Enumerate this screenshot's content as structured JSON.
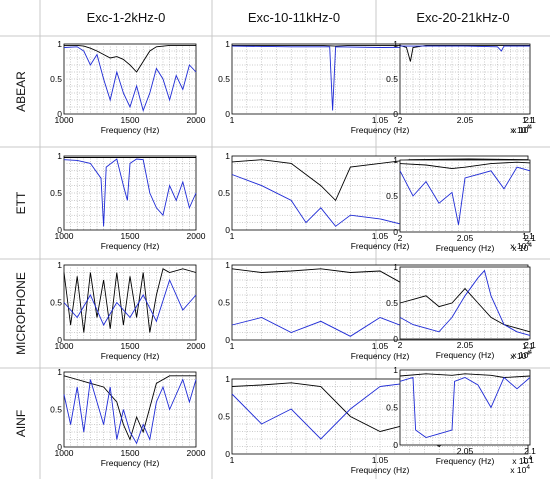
{
  "columns": [
    "Exc-1-2kHz-0",
    "Exc-10-11kHz-0",
    "Exc-20-21kHz-0"
  ],
  "rows": [
    "ABEAR",
    "ETT",
    "MICROPHONE",
    "AINF"
  ],
  "colors": {
    "series_a": "#000000",
    "series_b": "#1f2bd6",
    "grid": "#9a9a9a",
    "border": "#b8b8b8"
  },
  "chart_data": [
    {
      "type": "line",
      "row": "ABEAR",
      "column": "Exc-1-2kHz-0",
      "xlabel": "Frequency (Hz)",
      "x_multiplier": "",
      "xlim": [
        1000,
        2000
      ],
      "xticks": [
        "1000",
        "1500",
        "2000"
      ],
      "ylim": [
        0,
        1
      ],
      "yticks": [
        "0",
        "0.5",
        "1"
      ],
      "series": [
        {
          "color": "#000000",
          "x": [
            1000,
            1100,
            1150,
            1200,
            1250,
            1300,
            1350,
            1400,
            1450,
            1500,
            1550,
            1600,
            1650,
            1700,
            1800,
            1900,
            2000
          ],
          "y": [
            0.98,
            0.98,
            0.97,
            0.94,
            0.9,
            0.85,
            0.8,
            0.82,
            0.78,
            0.7,
            0.6,
            0.75,
            0.9,
            0.96,
            0.98,
            0.98,
            0.98
          ]
        },
        {
          "color": "#1f2bd6",
          "x": [
            1000,
            1100,
            1150,
            1200,
            1250,
            1300,
            1350,
            1400,
            1450,
            1500,
            1550,
            1600,
            1650,
            1700,
            1750,
            1800,
            1850,
            1900,
            1950,
            2000
          ],
          "y": [
            0.95,
            0.96,
            0.9,
            0.7,
            0.85,
            0.5,
            0.2,
            0.6,
            0.3,
            0.1,
            0.4,
            0.05,
            0.3,
            0.65,
            0.5,
            0.2,
            0.55,
            0.35,
            0.7,
            0.6
          ]
        }
      ]
    },
    {
      "type": "line",
      "row": "ABEAR",
      "column": "Exc-10-11kHz-0",
      "xlabel": "Frequency (Hz)",
      "x_multiplier": "x 10^4",
      "xlim": [
        1,
        1.1
      ],
      "xticks": [
        "1",
        "1.05",
        "1.1"
      ],
      "ylim": [
        0,
        1
      ],
      "yticks": [
        "0",
        "0.5",
        "1"
      ],
      "series": [
        {
          "color": "#000000",
          "x": [
            1,
            1.03,
            1.035,
            1.04,
            1.1
          ],
          "y": [
            0.98,
            0.98,
            0.97,
            0.98,
            0.98
          ]
        },
        {
          "color": "#1f2bd6",
          "x": [
            1,
            1.02,
            1.033,
            1.034,
            1.035,
            1.05,
            1.08,
            1.1
          ],
          "y": [
            0.97,
            0.96,
            0.96,
            0.05,
            0.96,
            0.95,
            0.96,
            0.95
          ]
        }
      ]
    },
    {
      "type": "line",
      "row": "ABEAR",
      "column": "Exc-20-21kHz-0",
      "xlabel": "",
      "x_multiplier": "x 10^4",
      "xlim": [
        2,
        2.1
      ],
      "xticks": [
        "2",
        "2.05",
        "2.1"
      ],
      "ylim": [
        0,
        1
      ],
      "yticks": [
        "0",
        "0.5",
        "1"
      ],
      "series": [
        {
          "color": "#000000",
          "x": [
            2,
            2.005,
            2.008,
            2.01,
            2.02,
            2.1
          ],
          "y": [
            0.98,
            0.95,
            0.75,
            0.95,
            0.98,
            0.98
          ]
        },
        {
          "color": "#1f2bd6",
          "x": [
            2,
            2.02,
            2.05,
            2.075,
            2.078,
            2.08,
            2.1
          ],
          "y": [
            0.97,
            0.97,
            0.97,
            0.96,
            0.9,
            0.97,
            0.97
          ]
        }
      ]
    },
    {
      "type": "line",
      "row": "ETT",
      "column": "Exc-1-2kHz-0",
      "xlabel": "Frequency (Hz)",
      "x_multiplier": "",
      "xlim": [
        1000,
        2000
      ],
      "xticks": [
        "1000",
        "1500",
        "2000"
      ],
      "ylim": [
        0,
        1
      ],
      "yticks": [
        "0",
        "0.5",
        "1"
      ],
      "series": [
        {
          "color": "#000000",
          "x": [
            1000,
            1500,
            2000
          ],
          "y": [
            0.98,
            0.98,
            0.98
          ]
        },
        {
          "color": "#1f2bd6",
          "x": [
            1000,
            1100,
            1200,
            1280,
            1300,
            1320,
            1400,
            1450,
            1480,
            1500,
            1550,
            1600,
            1650,
            1700,
            1750,
            1800,
            1850,
            1900,
            1950,
            2000
          ],
          "y": [
            0.95,
            0.94,
            0.9,
            0.7,
            0.05,
            0.85,
            0.96,
            0.6,
            0.4,
            0.9,
            0.96,
            0.95,
            0.5,
            0.3,
            0.2,
            0.6,
            0.4,
            0.65,
            0.3,
            0.5
          ]
        }
      ]
    },
    {
      "type": "line",
      "row": "ETT",
      "column": "Exc-10-11kHz-0",
      "xlabel": "Frequency (Hz)",
      "x_multiplier": "x 10^4",
      "xlim": [
        1,
        1.1
      ],
      "xticks": [
        "1",
        "1.05",
        "1.1"
      ],
      "ylim": [
        0,
        1
      ],
      "yticks": [
        "0",
        "0.5",
        "1"
      ],
      "series": [
        {
          "color": "#000000",
          "x": [
            1,
            1.01,
            1.02,
            1.03,
            1.035,
            1.04,
            1.06,
            1.08,
            1.1
          ],
          "y": [
            0.92,
            0.95,
            0.9,
            0.6,
            0.4,
            0.85,
            0.95,
            0.96,
            0.95
          ]
        },
        {
          "color": "#1f2bd6",
          "x": [
            1,
            1.01,
            1.02,
            1.025,
            1.03,
            1.035,
            1.04,
            1.05,
            1.06,
            1.07,
            1.08,
            1.1
          ],
          "y": [
            0.75,
            0.6,
            0.4,
            0.1,
            0.3,
            0.05,
            0.2,
            0.15,
            0.05,
            0.1,
            0.15,
            0.08
          ]
        }
      ]
    },
    {
      "type": "line",
      "row": "ETT",
      "column": "Exc-20-21kHz-0",
      "xlabel": "Frequency (Hz)",
      "x_multiplier": "x 10^4",
      "xlim": [
        2,
        2.1
      ],
      "xticks": [
        "2",
        "2.05",
        "2.1"
      ],
      "ylim": [
        0,
        1
      ],
      "yticks": [
        "0",
        "0.5",
        "1"
      ],
      "series": [
        {
          "color": "#000000",
          "x": [
            2,
            2.02,
            2.04,
            2.05,
            2.07,
            2.09,
            2.1
          ],
          "y": [
            0.95,
            0.93,
            0.88,
            0.9,
            0.95,
            0.97,
            0.96
          ]
        },
        {
          "color": "#1f2bd6",
          "x": [
            2,
            2.01,
            2.02,
            2.03,
            2.04,
            2.045,
            2.05,
            2.06,
            2.07,
            2.08,
            2.09,
            2.1
          ],
          "y": [
            0.85,
            0.5,
            0.7,
            0.4,
            0.55,
            0.1,
            0.75,
            0.8,
            0.85,
            0.6,
            0.9,
            0.85
          ]
        }
      ]
    },
    {
      "type": "line",
      "row": "MICROPHONE",
      "column": "Exc-1-2kHz-0",
      "xlabel": "Frequency (Hz)",
      "x_multiplier": "",
      "xlim": [
        1000,
        2000
      ],
      "xticks": [
        "1000",
        "1500",
        "2000"
      ],
      "ylim": [
        0,
        1
      ],
      "yticks": [
        "0",
        "0.5",
        "1"
      ],
      "series": [
        {
          "color": "#000000",
          "x": [
            1000,
            1050,
            1100,
            1150,
            1200,
            1250,
            1300,
            1350,
            1400,
            1450,
            1500,
            1550,
            1600,
            1650,
            1700,
            1750,
            1800,
            1900,
            2000
          ],
          "y": [
            0.9,
            0.2,
            0.85,
            0.1,
            0.9,
            0.3,
            0.8,
            0.15,
            0.9,
            0.2,
            0.85,
            0.3,
            0.9,
            0.1,
            0.6,
            0.95,
            0.9,
            0.95,
            0.9
          ]
        },
        {
          "color": "#1f2bd6",
          "x": [
            1000,
            1100,
            1200,
            1300,
            1400,
            1500,
            1600,
            1700,
            1800,
            1900,
            2000
          ],
          "y": [
            0.5,
            0.3,
            0.6,
            0.2,
            0.5,
            0.3,
            0.6,
            0.25,
            0.8,
            0.4,
            0.6
          ]
        }
      ]
    },
    {
      "type": "line",
      "row": "MICROPHONE",
      "column": "Exc-10-11kHz-0",
      "xlabel": "Frequency (Hz)",
      "x_multiplier": "x 10^4",
      "xlim": [
        1,
        1.1
      ],
      "xticks": [
        "1",
        "1.05",
        "1.1"
      ],
      "ylim": [
        0,
        1
      ],
      "yticks": [
        "0",
        "0.5",
        "1"
      ],
      "series": [
        {
          "color": "#000000",
          "x": [
            1,
            1.01,
            1.02,
            1.03,
            1.04,
            1.05,
            1.06,
            1.07,
            1.08,
            1.09,
            1.1
          ],
          "y": [
            0.95,
            0.9,
            0.92,
            0.95,
            0.9,
            0.92,
            0.7,
            0.1,
            0.5,
            0.8,
            0.9
          ]
        },
        {
          "color": "#1f2bd6",
          "x": [
            1,
            1.01,
            1.02,
            1.03,
            1.04,
            1.05,
            1.06,
            1.07,
            1.08,
            1.09,
            1.1
          ],
          "y": [
            0.2,
            0.3,
            0.1,
            0.25,
            0.05,
            0.3,
            0.15,
            0.3,
            0.1,
            0.25,
            0.2
          ]
        }
      ]
    },
    {
      "type": "line",
      "row": "MICROPHONE",
      "column": "Exc-20-21kHz-0",
      "xlabel": "Frequency (Hz)",
      "x_multiplier": "x 10^4",
      "xlim": [
        2,
        2.1
      ],
      "xticks": [
        "2",
        "2.05",
        "2.1"
      ],
      "ylim": [
        0,
        1
      ],
      "yticks": [
        "0",
        "0.5",
        "1"
      ],
      "series": [
        {
          "color": "#000000",
          "x": [
            2,
            2.01,
            2.02,
            2.03,
            2.04,
            2.05,
            2.06,
            2.07,
            2.08,
            2.09,
            2.1
          ],
          "y": [
            0.5,
            0.55,
            0.6,
            0.45,
            0.5,
            0.7,
            0.5,
            0.3,
            0.2,
            0.15,
            0.1
          ]
        },
        {
          "color": "#1f2bd6",
          "x": [
            2,
            2.01,
            2.02,
            2.03,
            2.04,
            2.05,
            2.06,
            2.065,
            2.07,
            2.08,
            2.09,
            2.1
          ],
          "y": [
            0.3,
            0.2,
            0.15,
            0.1,
            0.3,
            0.6,
            0.85,
            0.95,
            0.6,
            0.2,
            0.1,
            0.05
          ]
        }
      ]
    },
    {
      "type": "line",
      "row": "AINF",
      "column": "Exc-1-2kHz-0",
      "xlabel": "Frequency (Hz)",
      "x_multiplier": "",
      "xlim": [
        1000,
        2000
      ],
      "xticks": [
        "1000",
        "1500",
        "2000"
      ],
      "ylim": [
        0,
        1
      ],
      "yticks": [
        "0",
        "0.5",
        "1"
      ],
      "series": [
        {
          "color": "#000000",
          "x": [
            1000,
            1100,
            1200,
            1300,
            1400,
            1450,
            1500,
            1550,
            1600,
            1700,
            1800,
            1900,
            2000
          ],
          "y": [
            0.95,
            0.9,
            0.85,
            0.8,
            0.6,
            0.3,
            0.1,
            0.4,
            0.2,
            0.85,
            0.95,
            0.95,
            0.95
          ]
        },
        {
          "color": "#1f2bd6",
          "x": [
            1000,
            1050,
            1100,
            1150,
            1200,
            1250,
            1300,
            1350,
            1400,
            1450,
            1500,
            1550,
            1600,
            1650,
            1700,
            1750,
            1800,
            1850,
            1900,
            1950,
            2000
          ],
          "y": [
            0.7,
            0.3,
            0.8,
            0.2,
            0.9,
            0.6,
            0.3,
            0.8,
            0.1,
            0.5,
            0.2,
            0.05,
            0.3,
            0.1,
            0.6,
            0.8,
            0.5,
            0.7,
            0.9,
            0.6,
            0.9
          ]
        }
      ]
    },
    {
      "type": "line",
      "row": "AINF",
      "column": "Exc-10-11kHz-0",
      "xlabel": "Frequency (Hz)",
      "x_multiplier": "x 10^4",
      "xlim": [
        1,
        1.1
      ],
      "xticks": [
        "1",
        "1.05",
        "1.1"
      ],
      "ylim": [
        0,
        1
      ],
      "yticks": [
        "0",
        "0.5",
        "1"
      ],
      "series": [
        {
          "color": "#000000",
          "x": [
            1,
            1.01,
            1.02,
            1.03,
            1.04,
            1.05,
            1.06,
            1.07,
            1.08,
            1.09,
            1.1
          ],
          "y": [
            0.9,
            0.92,
            0.95,
            0.9,
            0.5,
            0.3,
            0.4,
            0.1,
            0.5,
            0.8,
            0.95
          ]
        },
        {
          "color": "#1f2bd6",
          "x": [
            1,
            1.01,
            1.02,
            1.03,
            1.04,
            1.05,
            1.06,
            1.07,
            1.08,
            1.09,
            1.1
          ],
          "y": [
            0.8,
            0.4,
            0.6,
            0.2,
            0.6,
            0.9,
            0.95,
            0.92,
            0.9,
            0.95,
            0.92
          ]
        }
      ]
    },
    {
      "type": "line",
      "row": "AINF",
      "column": "Exc-20-21kHz-0",
      "xlabel": "Frequency (Hz)",
      "x_multiplier": "x 10^4",
      "xlim": [
        2,
        2.1
      ],
      "xticks": [
        "2.05",
        "2.1"
      ],
      "ylim": [
        0,
        1
      ],
      "yticks": [
        "0",
        "0.5",
        "1"
      ],
      "series": [
        {
          "color": "#000000",
          "x": [
            2,
            2.02,
            2.04,
            2.05,
            2.07,
            2.08,
            2.1
          ],
          "y": [
            0.92,
            0.95,
            0.93,
            0.95,
            0.93,
            0.9,
            0.92
          ]
        },
        {
          "color": "#1f2bd6",
          "x": [
            2,
            2.01,
            2.012,
            2.02,
            2.03,
            2.04,
            2.042,
            2.05,
            2.06,
            2.07,
            2.08,
            2.09,
            2.1
          ],
          "y": [
            0.85,
            0.9,
            0.2,
            0.1,
            0.15,
            0.2,
            0.85,
            0.9,
            0.8,
            0.5,
            0.9,
            0.75,
            0.9
          ]
        }
      ]
    }
  ]
}
